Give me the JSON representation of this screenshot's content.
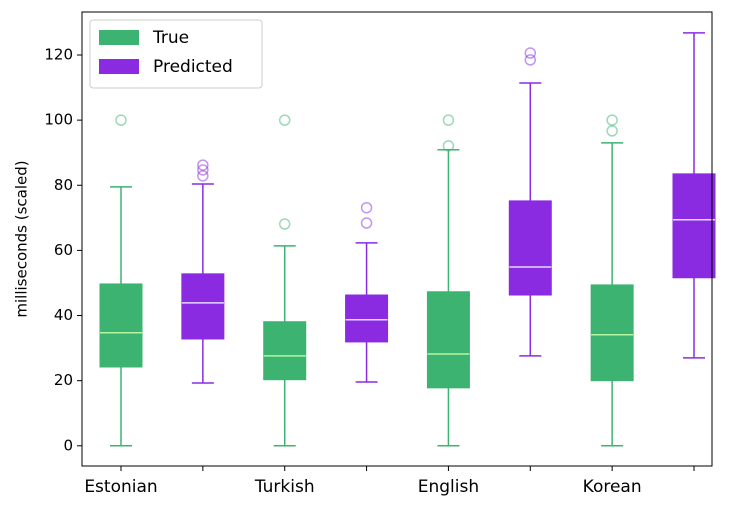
{
  "chart_data": {
    "type": "box",
    "y_label": "milliseconds (scaled)",
    "categories": [
      "Estonian",
      null,
      "Turkish",
      null,
      "English",
      null,
      "Korean",
      null
    ],
    "ylim": [
      -6.2,
      133.2
    ],
    "yticks": [
      0,
      20,
      40,
      60,
      80,
      100,
      120
    ],
    "legend": "upper left",
    "series": [
      {
        "name": "True",
        "color": "#3cb371",
        "median_color": "#b4f5a0",
        "boxes": [
          {
            "whisker_low": 0,
            "q1": 24.2,
            "median": 34.7,
            "q3": 49.7,
            "whisker_high": 79.5,
            "outliers": [
              100
            ]
          },
          {
            "whisker_low": 0,
            "q1": 20.3,
            "median": 27.6,
            "q3": 38.1,
            "whisker_high": 61.4,
            "outliers": [
              100,
              68.1
            ]
          },
          {
            "whisker_low": 0,
            "q1": 17.8,
            "median": 28.2,
            "q3": 47.3,
            "whisker_high": 90.9,
            "outliers": [
              100,
              92.1
            ]
          },
          {
            "whisker_low": 0,
            "q1": 20,
            "median": 34.1,
            "q3": 49.4,
            "whisker_high": 93,
            "outliers": [
              100,
              96.7
            ]
          }
        ]
      },
      {
        "name": "Predicted",
        "color": "#8a2be2",
        "median_color": "#e6d8ff",
        "boxes": [
          {
            "whisker_low": 19.3,
            "q1": 32.8,
            "median": 43.9,
            "q3": 52.8,
            "whisker_high": 80.4,
            "outliers": [
              86.2,
              84.7,
              82.9
            ]
          },
          {
            "whisker_low": 19.6,
            "q1": 31.9,
            "median": 38.7,
            "q3": 46.3,
            "whisker_high": 62.3,
            "outliers": [
              73.1,
              68.4
            ]
          },
          {
            "whisker_low": 27.6,
            "q1": 46.3,
            "median": 54.9,
            "q3": 75.2,
            "whisker_high": 111.4,
            "outliers": [
              120.6,
              118.5
            ]
          },
          {
            "whisker_low": 27,
            "q1": 51.6,
            "median": 69.4,
            "q3": 83.5,
            "whisker_high": 126.8,
            "outliers": []
          }
        ]
      }
    ]
  }
}
